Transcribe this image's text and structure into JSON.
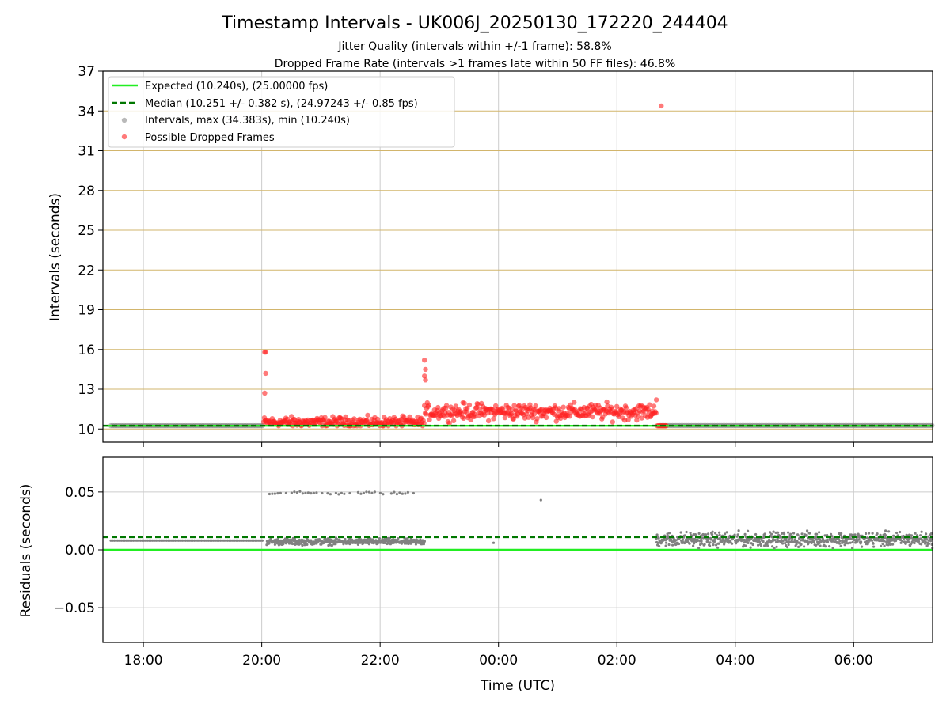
{
  "title": "Timestamp Intervals - UK006J_20250130_172220_244404",
  "subtitle_lines": [
    "Jitter Quality (intervals within +/-1 frame): 58.8%",
    "Dropped Frame Rate (intervals >1 frames late within 50 FF files): 46.8%"
  ],
  "colors": {
    "expected": "#22ee22",
    "median": "#007700",
    "intervals": "#808080",
    "dropped": "#ff2222",
    "hgrid_top": "#d2b56c",
    "grid": "#cccccc"
  },
  "chart_data": [
    {
      "type": "scatter",
      "panel": "intervals",
      "xlabel": "",
      "ylabel": "Intervals (seconds)",
      "x_range": [
        "17:19",
        "07:20"
      ],
      "ylim": [
        9.0,
        37.0
      ],
      "yticks": [
        10,
        13,
        16,
        19,
        22,
        25,
        28,
        31,
        34,
        37
      ],
      "ytick_labels": [
        "10",
        "13",
        "16",
        "19",
        "22",
        "25",
        "28",
        "31",
        "34",
        "37"
      ],
      "xticks": [
        "18:00",
        "20:00",
        "22:00",
        "00:00",
        "02:00",
        "04:00",
        "06:00"
      ],
      "grid": true,
      "legend_position": "upper-left",
      "legend": [
        "Expected (10.240s), (25.00000 fps)",
        "Median (10.251 +/- 0.382 s), (24.97243 +/- 0.85 fps)",
        "Intervals, max (34.383s), min (10.240s)",
        "Possible Dropped Frames"
      ],
      "expected_y": 10.24,
      "median_y": 10.251,
      "series": [
        {
          "name": "Intervals, max (34.383s), min (10.240s)",
          "segments": [
            {
              "x_start": "17:27",
              "x_end": "20:02",
              "y": 10.25
            },
            {
              "x_start": "02:44",
              "x_end": "07:20",
              "y": 10.26
            }
          ]
        },
        {
          "name": "Possible Dropped Frames",
          "bands": [
            {
              "x_start": "20:02",
              "x_end": "22:45",
              "y_center": 10.5,
              "y_spread": 0.6
            },
            {
              "x_start": "22:45",
              "x_end": "02:40",
              "y_center": 11.3,
              "y_spread": 0.9
            }
          ],
          "points": [
            {
              "x": "20:03",
              "y": 15.8
            },
            {
              "x": "20:04",
              "y": 15.8
            },
            {
              "x": "20:04",
              "y": 14.2
            },
            {
              "x": "20:03",
              "y": 12.7
            },
            {
              "x": "22:45",
              "y": 15.2
            },
            {
              "x": "22:46",
              "y": 14.5
            },
            {
              "x": "22:45",
              "y": 14.0
            },
            {
              "x": "22:46",
              "y": 13.7
            },
            {
              "x": "02:40",
              "y": 12.2
            },
            {
              "x": "02:45",
              "y": 34.38
            },
            {
              "x": "02:41",
              "y": 10.24
            },
            {
              "x": "02:42",
              "y": 10.24
            },
            {
              "x": "02:43",
              "y": 10.24
            },
            {
              "x": "02:44",
              "y": 10.24
            },
            {
              "x": "02:45",
              "y": 10.24
            },
            {
              "x": "02:46",
              "y": 10.24
            },
            {
              "x": "02:47",
              "y": 10.24
            },
            {
              "x": "02:48",
              "y": 10.24
            },
            {
              "x": "02:49",
              "y": 10.24
            },
            {
              "x": "02:50",
              "y": 10.24
            }
          ]
        }
      ]
    },
    {
      "type": "scatter",
      "panel": "residuals",
      "xlabel": "Time (UTC)",
      "ylabel": "Residuals (seconds)",
      "x_range": [
        "17:19",
        "07:20"
      ],
      "ylim": [
        -0.08,
        0.08
      ],
      "yticks": [
        0.05,
        0.0,
        -0.05
      ],
      "ytick_labels": [
        "0.05",
        "0.00",
        "−0.05"
      ],
      "xticks": [
        "18:00",
        "20:00",
        "22:00",
        "00:00",
        "02:00",
        "04:00",
        "06:00"
      ],
      "grid": true,
      "expected_y": 0.0,
      "median_y": 0.011,
      "series": [
        {
          "name": "Residuals",
          "segments": [
            {
              "x_start": "17:27",
              "x_end": "20:02",
              "y": 0.008
            }
          ],
          "bands": [
            {
              "x_start": "20:05",
              "x_end": "22:45",
              "y_center": 0.007,
              "y_spread": 0.004
            },
            {
              "x_start": "20:05",
              "x_end": "22:35",
              "y_center": 0.049,
              "y_spread": 0.002,
              "sparse": true
            },
            {
              "x_start": "02:40",
              "x_end": "07:20",
              "y_center": 0.009,
              "y_spread": 0.009
            }
          ],
          "points": [
            {
              "x": "23:55",
              "y": 0.006
            },
            {
              "x": "00:43",
              "y": 0.043
            }
          ]
        }
      ]
    }
  ]
}
